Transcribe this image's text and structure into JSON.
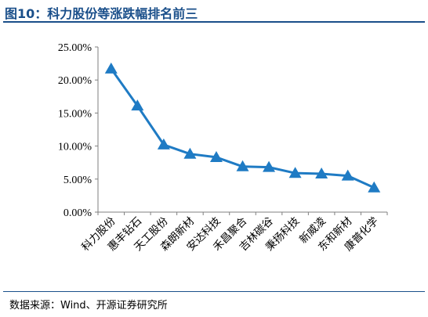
{
  "header": {
    "title": "图10：科力股份等涨跌幅排名前三"
  },
  "footer": {
    "source": "数据来源：Wind、开源证券研究所"
  },
  "colors": {
    "series": "#1F7BC4",
    "title": "#1a4f8a",
    "axis": "#7f7f7f"
  },
  "chart_data": {
    "type": "line",
    "title": "",
    "xlabel": "",
    "ylabel": "",
    "categories": [
      "科力股份",
      "惠丰钻石",
      "天工股份",
      "森朗新材",
      "安达科技",
      "禾昌聚合",
      "吉林碳谷",
      "秉扬科技",
      "新威凌",
      "东和新材",
      "康普化学"
    ],
    "series": [
      {
        "values": [
          21.7,
          16.1,
          10.2,
          8.8,
          8.3,
          6.9,
          6.8,
          5.9,
          5.8,
          5.5,
          3.7
        ]
      }
    ],
    "ylim": [
      0,
      25
    ],
    "yticks": [
      "0.00%",
      "5.00%",
      "10.00%",
      "15.00%",
      "20.00%",
      "25.00%"
    ],
    "grid": false,
    "marker": "triangle"
  }
}
